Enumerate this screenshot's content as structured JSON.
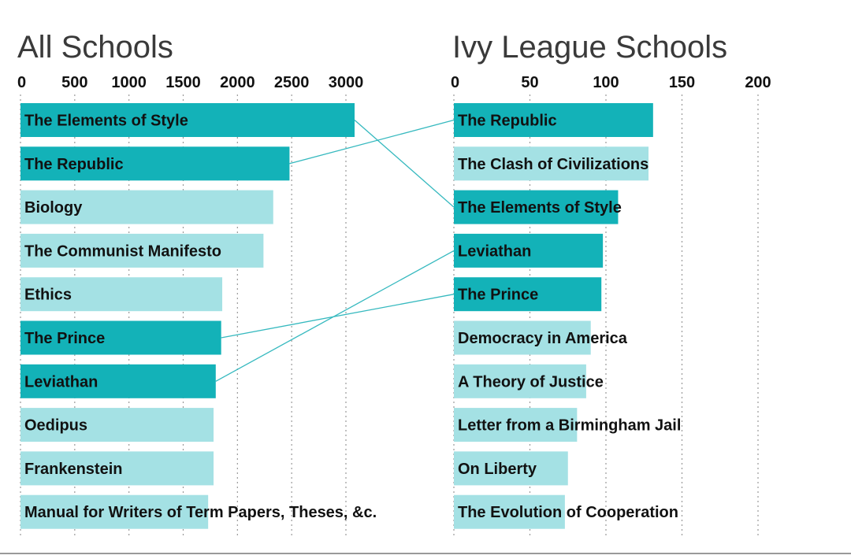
{
  "chart_data": [
    {
      "type": "bar",
      "orientation": "horizontal",
      "title": "All Schools",
      "xlim": [
        0,
        3000
      ],
      "ticks": [
        0,
        500,
        1000,
        1500,
        2000,
        2500,
        3000
      ],
      "grid": "vertical dotted",
      "categories": [
        "The Elements of Style",
        "The Republic",
        "Biology",
        "The Communist Manifesto",
        "Ethics",
        "The Prince",
        "Leviathan",
        "Oedipus",
        "Frankenstein",
        "Manual for Writers of Term Papers, Theses, &c."
      ],
      "values": [
        3080,
        2480,
        2330,
        2240,
        1860,
        1850,
        1800,
        1780,
        1780,
        1730
      ],
      "highlighted": [
        true,
        true,
        false,
        false,
        false,
        true,
        true,
        false,
        false,
        false
      ]
    },
    {
      "type": "bar",
      "orientation": "horizontal",
      "title": "Ivy League Schools",
      "xlim": [
        0,
        200
      ],
      "ticks": [
        0,
        50,
        100,
        150,
        200
      ],
      "grid": "vertical dotted",
      "categories": [
        "The Republic",
        "The Clash of Civilizations",
        "The Elements of Style",
        "Leviathan",
        "The Prince",
        "Democracy in America",
        "A Theory of Justice",
        "Letter from a Birmingham Jail",
        "On Liberty",
        "The Evolution of Cooperation"
      ],
      "values": [
        131,
        128,
        108,
        98,
        97,
        90,
        87,
        81,
        75,
        73
      ],
      "highlighted": [
        true,
        false,
        true,
        true,
        true,
        false,
        false,
        false,
        false,
        false
      ]
    }
  ],
  "colors": {
    "highlight_bar": "#13b2b8",
    "normal_bar": "#a4e1e4",
    "connector": "#36b9bf",
    "grid": "#9a9a9a",
    "title": "#3a3a3a",
    "text": "#111111"
  }
}
